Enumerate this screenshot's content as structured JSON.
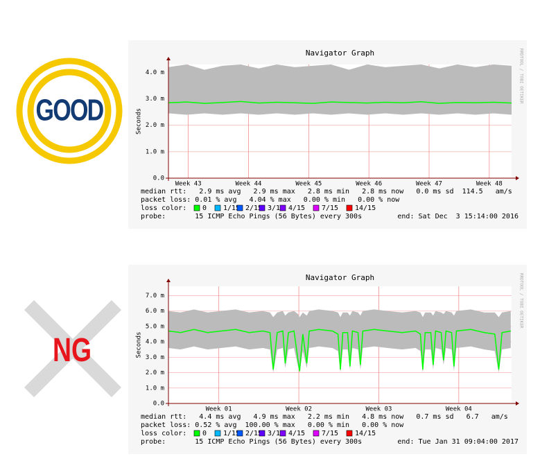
{
  "badges": [
    {
      "label": "GOOD"
    },
    {
      "label": "NG"
    }
  ],
  "chart_data": [
    {
      "type": "line",
      "title": "Navigator Graph",
      "y_label": "Seconds",
      "side_text": "RRDTOOL / TOBI OETIKER",
      "xlim": [
        42.67,
        48.37
      ],
      "xticks": [
        {
          "value": 43,
          "label": "Week 43"
        },
        {
          "value": 44,
          "label": "Week 44"
        },
        {
          "value": 45,
          "label": "Week 45"
        },
        {
          "value": 46,
          "label": "Week 46"
        },
        {
          "value": 47,
          "label": "Week 47"
        },
        {
          "value": 48,
          "label": "Week 48"
        }
      ],
      "ylim": [
        0,
        4.3
      ],
      "yticks": [
        {
          "value": 0,
          "label": "0.0"
        },
        {
          "value": 1,
          "label": "1.0 m"
        },
        {
          "value": 2,
          "label": "2.0 m"
        },
        {
          "value": 3,
          "label": "3.0 m"
        },
        {
          "value": 4,
          "label": "4.0 m"
        }
      ],
      "x": [
        42.67,
        42.97,
        43.27,
        43.57,
        43.87,
        44.17,
        44.47,
        44.77,
        45.07,
        45.37,
        45.67,
        45.97,
        46.27,
        46.57,
        46.87,
        47.17,
        47.47,
        47.77,
        48.07,
        48.37
      ],
      "series": [
        {
          "color": "#00ff00",
          "values": [
            2.85,
            2.88,
            2.83,
            2.86,
            2.9,
            2.84,
            2.87,
            2.85,
            2.83,
            2.88,
            2.86,
            2.84,
            2.87,
            2.85,
            2.89,
            2.83,
            2.86,
            2.85,
            2.87,
            2.84
          ]
        }
      ],
      "smoke": {
        "color": "#bbbbbb",
        "low": [
          2.45,
          2.4,
          2.45,
          2.4,
          2.45,
          2.4,
          2.45,
          2.4,
          2.45,
          2.4,
          2.45,
          2.4,
          2.45,
          2.4,
          2.45,
          2.4,
          2.45,
          2.4,
          2.45,
          2.4
        ],
        "high": [
          4.2,
          4.3,
          4.1,
          4.25,
          4.3,
          4.15,
          4.3,
          4.2,
          4.25,
          4.3,
          4.1,
          4.3,
          4.2,
          4.25,
          4.3,
          4.15,
          4.3,
          4.2,
          4.3,
          4.25
        ]
      },
      "stats": [
        "median rtt:   2.9 ms avg   2.9 ms max   2.8 ms min   2.8 ms now   0.0 ms sd  114.5   am/s",
        "packet loss: 0.01 % avg   4.04 % max   0.00 % min   0.00 % now"
      ],
      "loss_label": "loss color:",
      "loss_legend": [
        {
          "label": "0",
          "color": "#00ff00"
        },
        {
          "label": "1/15",
          "color": "#00b8ff"
        },
        {
          "label": "2/15",
          "color": "#0059ff"
        },
        {
          "label": "3/15",
          "color": "#5e00ff"
        },
        {
          "label": "4/15",
          "color": "#7e00ff"
        },
        {
          "label": "7/15",
          "color": "#dd00ff"
        },
        {
          "label": "14/15",
          "color": "#ff0000"
        }
      ],
      "probe": "probe:       15 ICMP Echo Pings (56 Bytes) every 300s",
      "end": "end: Sat Dec  3 15:14:00 2016"
    },
    {
      "type": "line",
      "title": "Navigator Graph",
      "y_label": "Seconds",
      "side_text": "RRDTOOL / TOBI OETIKER",
      "xlim": [
        0.37,
        4.66
      ],
      "xticks": [
        {
          "value": 1,
          "label": "Week 01"
        },
        {
          "value": 2,
          "label": "Week 02"
        },
        {
          "value": 3,
          "label": "Week 03"
        },
        {
          "value": 4,
          "label": "Week 04"
        }
      ],
      "ylim": [
        0,
        7.6
      ],
      "yticks": [
        {
          "value": 0,
          "label": "0.0"
        },
        {
          "value": 1,
          "label": "1.0 m"
        },
        {
          "value": 2,
          "label": "2.0 m"
        },
        {
          "value": 3,
          "label": "3.0 m"
        },
        {
          "value": 4,
          "label": "4.0 m"
        },
        {
          "value": 5,
          "label": "5.0 m"
        },
        {
          "value": 6,
          "label": "6.0 m"
        },
        {
          "value": 7,
          "label": "7.0 m"
        }
      ],
      "x": [
        0.37,
        0.52,
        0.69,
        0.86,
        1.03,
        1.21,
        1.38,
        1.55,
        1.64,
        1.68,
        1.73,
        1.8,
        1.83,
        1.87,
        1.94,
        1.99,
        2.01,
        2.05,
        2.1,
        2.13,
        2.25,
        2.42,
        2.49,
        2.52,
        2.55,
        2.61,
        2.64,
        2.67,
        2.74,
        2.77,
        2.8,
        2.94,
        3.11,
        3.29,
        3.46,
        3.52,
        3.55,
        3.58,
        3.65,
        3.68,
        3.71,
        3.78,
        3.81,
        3.84,
        3.91,
        3.94,
        3.97,
        4.15,
        4.32,
        4.45,
        4.5,
        4.54,
        4.65
      ],
      "series": [
        {
          "color": "#00ff00",
          "values": [
            4.7,
            4.6,
            4.8,
            4.6,
            4.7,
            4.8,
            4.6,
            4.7,
            4.6,
            2.2,
            4.6,
            4.7,
            2.6,
            4.6,
            4.7,
            2.8,
            2.1,
            4.5,
            2.6,
            4.7,
            4.8,
            4.7,
            4.5,
            2.2,
            4.6,
            4.6,
            2.4,
            4.7,
            4.6,
            2.5,
            4.7,
            4.8,
            4.7,
            4.6,
            4.7,
            4.5,
            2.2,
            4.6,
            4.6,
            2.5,
            4.7,
            4.6,
            2.8,
            4.7,
            4.6,
            2.4,
            4.7,
            4.8,
            4.6,
            4.5,
            2.2,
            4.6,
            4.7
          ]
        }
      ],
      "smoke": {
        "color": "#bbbbbb",
        "low": [
          3.6,
          3.5,
          3.7,
          3.5,
          3.6,
          3.7,
          3.5,
          3.6,
          3.5,
          2.0,
          3.5,
          3.6,
          2.3,
          3.5,
          3.6,
          2.4,
          2.0,
          3.4,
          2.3,
          3.6,
          3.7,
          3.6,
          3.4,
          2.0,
          3.5,
          3.5,
          2.2,
          3.6,
          3.5,
          2.2,
          3.6,
          3.7,
          3.6,
          3.5,
          3.6,
          3.4,
          2.0,
          3.5,
          3.5,
          2.2,
          3.6,
          3.5,
          2.5,
          3.6,
          3.5,
          2.1,
          3.6,
          3.7,
          3.5,
          3.4,
          2.0,
          3.5,
          3.6
        ],
        "high": [
          6.0,
          5.9,
          6.1,
          5.9,
          6.0,
          6.1,
          5.9,
          6.0,
          5.9,
          5.6,
          5.9,
          6.0,
          5.7,
          5.9,
          6.0,
          5.8,
          5.6,
          5.9,
          5.7,
          6.0,
          6.1,
          6.0,
          5.9,
          5.6,
          5.9,
          5.9,
          5.7,
          6.0,
          5.9,
          5.7,
          6.0,
          6.1,
          6.0,
          5.9,
          6.0,
          5.9,
          5.6,
          5.9,
          5.9,
          5.7,
          6.0,
          5.9,
          5.8,
          6.0,
          5.9,
          5.7,
          6.0,
          6.1,
          5.9,
          5.9,
          5.6,
          5.9,
          6.0
        ]
      },
      "stats": [
        "median rtt:   4.4 ms avg   4.9 ms max   2.2 ms min   4.8 ms now   0.7 ms sd   6.7   am/s",
        "packet loss: 0.52 % avg  100.00 % max   0.00 % min   0.00 % now"
      ],
      "loss_label": "loss color:",
      "loss_legend": [
        {
          "label": "0",
          "color": "#00ff00"
        },
        {
          "label": "1/15",
          "color": "#00b8ff"
        },
        {
          "label": "2/15",
          "color": "#0059ff"
        },
        {
          "label": "3/15",
          "color": "#5e00ff"
        },
        {
          "label": "4/15",
          "color": "#7e00ff"
        },
        {
          "label": "7/15",
          "color": "#dd00ff"
        },
        {
          "label": "14/15",
          "color": "#ff0000"
        }
      ],
      "probe": "probe:       15 ICMP Echo Pings (56 Bytes) every 300s",
      "end": "end: Tue Jan 31 09:04:00 2017"
    }
  ]
}
